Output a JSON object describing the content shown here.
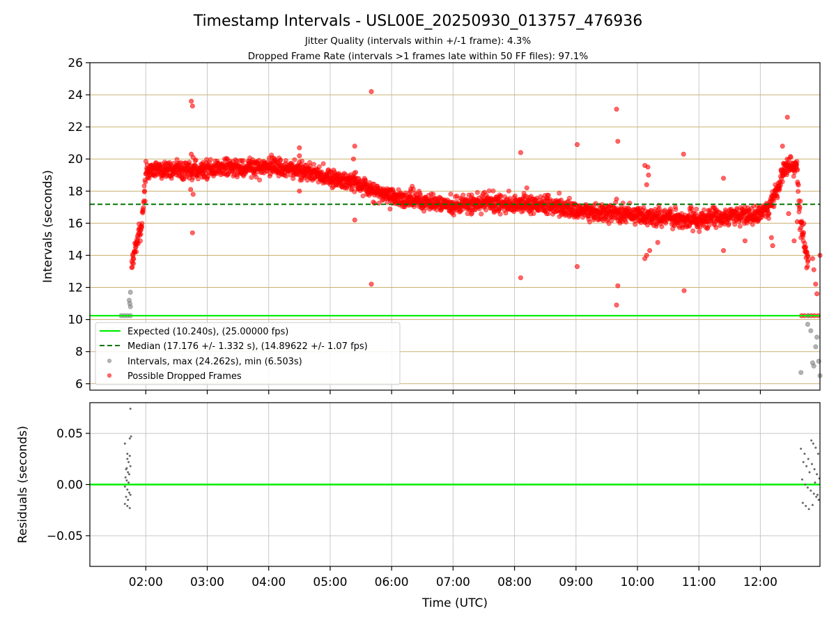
{
  "figure": {
    "title": "Timestamp Intervals - USL00E_20250930_013757_476936",
    "subtitle_1": "Jitter Quality (intervals within +/-1 frame): 4.3%",
    "subtitle_2": "Dropped Frame Rate (intervals >1 frames late within 50 FF files): 97.1%"
  },
  "colors": {
    "expected": "#00ee00",
    "median": "#007700",
    "interval_points": "#7f7f7f",
    "dropped_points": "#ff0000",
    "hgrid_top": "#c8b070",
    "grid": "#c8c8c8",
    "residual_points": "#666666"
  },
  "chart_data": [
    {
      "type": "scatter",
      "panel": "top",
      "ylabel": "Intervals (seconds)",
      "ylim": [
        5.6,
        26
      ],
      "yticks": [
        6,
        8,
        10,
        12,
        14,
        16,
        18,
        20,
        22,
        24,
        26
      ],
      "ytick_labels": [
        "6",
        "8",
        "10",
        "12",
        "14",
        "16",
        "18",
        "20",
        "22",
        "24",
        "26"
      ],
      "xlim_hours": [
        1.09,
        12.97
      ],
      "xticks_hours": [
        2,
        3,
        4,
        5,
        6,
        7,
        8,
        9,
        10,
        11,
        12
      ],
      "grid": "on",
      "legend_placement": "lower-left",
      "legend": [
        {
          "label": "Expected (10.240s), (25.00000 fps)",
          "kind": "solid-line",
          "color": "#00ee00"
        },
        {
          "label": "Median (17.176 +/- 1.332 s), (14.89622 +/- 1.07 fps)",
          "kind": "dashed-line",
          "color": "#007700"
        },
        {
          "label": "Intervals, max (24.262s), min (6.503s)",
          "kind": "marker",
          "color": "#7f7f7f"
        },
        {
          "label": "Possible Dropped Frames",
          "kind": "marker",
          "color": "#ff0000"
        }
      ],
      "expected_value": 10.24,
      "median_value": 17.176,
      "series": [
        {
          "name": "Possible Dropped Frames",
          "color": "#ff0000",
          "trend": [
            [
              1.77,
              13.2
            ],
            [
              1.82,
              14.3
            ],
            [
              1.88,
              15.1
            ],
            [
              1.93,
              16.0
            ],
            [
              1.97,
              17.3
            ],
            [
              2.0,
              19.0
            ],
            [
              2.02,
              19.3
            ],
            [
              2.5,
              19.3
            ],
            [
              3.0,
              19.35
            ],
            [
              3.5,
              19.45
            ],
            [
              4.0,
              19.5
            ],
            [
              4.5,
              19.3
            ],
            [
              4.9,
              18.9
            ],
            [
              5.2,
              18.7
            ],
            [
              5.4,
              18.6
            ],
            [
              5.6,
              18.1
            ],
            [
              5.9,
              17.8
            ],
            [
              6.2,
              17.6
            ],
            [
              6.6,
              17.3
            ],
            [
              7.0,
              17.1
            ],
            [
              7.5,
              17.25
            ],
            [
              8.0,
              17.2
            ],
            [
              8.5,
              17.1
            ],
            [
              9.0,
              16.9
            ],
            [
              9.5,
              16.6
            ],
            [
              10.0,
              16.45
            ],
            [
              10.5,
              16.35
            ],
            [
              11.0,
              16.3
            ],
            [
              11.5,
              16.4
            ],
            [
              12.0,
              16.6
            ],
            [
              12.15,
              17.0
            ],
            [
              12.25,
              17.8
            ],
            [
              12.32,
              18.5
            ],
            [
              12.38,
              19.3
            ],
            [
              12.5,
              19.6
            ],
            [
              12.6,
              19.4
            ],
            [
              12.63,
              17.0
            ],
            [
              12.68,
              15.5
            ],
            [
              12.73,
              14.2
            ],
            [
              12.78,
              13.5
            ]
          ],
          "values": [
            [
              2.74,
              23.6
            ],
            [
              2.76,
              23.3
            ],
            [
              2.74,
              20.3
            ],
            [
              2.77,
              20.1
            ],
            [
              2.73,
              18.1
            ],
            [
              2.77,
              17.8
            ],
            [
              2.76,
              15.4
            ],
            [
              4.5,
              20.7
            ],
            [
              4.5,
              20.2
            ],
            [
              4.5,
              19.8
            ],
            [
              4.5,
              18.0
            ],
            [
              5.4,
              20.8
            ],
            [
              5.38,
              20.0
            ],
            [
              5.4,
              16.2
            ],
            [
              5.67,
              24.2
            ],
            [
              5.67,
              12.2
            ],
            [
              8.1,
              20.4
            ],
            [
              8.1,
              12.6
            ],
            [
              8.2,
              18.2
            ],
            [
              9.02,
              20.9
            ],
            [
              9.02,
              13.3
            ],
            [
              9.66,
              23.1
            ],
            [
              9.68,
              21.1
            ],
            [
              9.68,
              12.1
            ],
            [
              9.66,
              10.9
            ],
            [
              9.66,
              17.5
            ],
            [
              10.12,
              19.6
            ],
            [
              10.17,
              19.5
            ],
            [
              10.18,
              19.0
            ],
            [
              10.15,
              18.4
            ],
            [
              10.12,
              13.8
            ],
            [
              10.15,
              14.0
            ],
            [
              10.2,
              14.3
            ],
            [
              10.33,
              14.8
            ],
            [
              10.75,
              20.3
            ],
            [
              10.76,
              11.8
            ],
            [
              11.4,
              18.8
            ],
            [
              11.4,
              14.3
            ],
            [
              11.75,
              14.9
            ],
            [
              12.18,
              15.1
            ],
            [
              12.2,
              14.6
            ],
            [
              12.36,
              20.8
            ],
            [
              12.44,
              22.6
            ],
            [
              12.46,
              16.6
            ],
            [
              12.55,
              14.9
            ],
            [
              12.6,
              16.1
            ],
            [
              12.85,
              13.8
            ],
            [
              12.87,
              13.1
            ],
            [
              12.9,
              12.2
            ],
            [
              12.92,
              11.6
            ],
            [
              12.97,
              14.0
            ],
            [
              12.67,
              10.24
            ],
            [
              12.72,
              10.24
            ],
            [
              12.78,
              10.24
            ],
            [
              12.83,
              10.24
            ],
            [
              12.88,
              10.24
            ],
            [
              12.94,
              10.24
            ]
          ]
        },
        {
          "name": "Intervals, max (24.262s), min (6.503s)",
          "color": "#7f7f7f",
          "values": [
            [
              1.6,
              10.24
            ],
            [
              1.65,
              10.24
            ],
            [
              1.7,
              10.24
            ],
            [
              1.75,
              10.24
            ],
            [
              1.73,
              11.2
            ],
            [
              1.75,
              11.7
            ],
            [
              1.74,
              11.0
            ],
            [
              1.75,
              10.8
            ],
            [
              12.77,
              9.7
            ],
            [
              12.78,
              10.24
            ],
            [
              12.82,
              9.3
            ],
            [
              12.85,
              7.3
            ],
            [
              12.87,
              7.1
            ],
            [
              12.9,
              8.3
            ],
            [
              12.92,
              8.9
            ],
            [
              12.95,
              7.4
            ],
            [
              12.97,
              6.5
            ],
            [
              12.66,
              6.7
            ]
          ]
        }
      ]
    },
    {
      "type": "scatter",
      "panel": "bottom",
      "xlabel": "Time (UTC)",
      "ylabel": "Residuals (seconds)",
      "ylim": [
        -0.08,
        0.08
      ],
      "yticks": [
        -0.05,
        0.0,
        0.05
      ],
      "ytick_labels": [
        "−0.05",
        "0.00",
        "0.05"
      ],
      "xlim_hours": [
        1.09,
        12.97
      ],
      "xticks_hours": [
        2,
        3,
        4,
        5,
        6,
        7,
        8,
        9,
        10,
        11,
        12
      ],
      "xtick_labels": [
        "02:00",
        "03:00",
        "04:00",
        "05:00",
        "06:00",
        "07:00",
        "08:00",
        "09:00",
        "10:00",
        "11:00",
        "12:00"
      ],
      "grid": "on",
      "zero_line_color": "#00ee00",
      "series": [
        {
          "name": "",
          "color": "#666666",
          "values": [
            [
              1.75,
              0.074
            ],
            [
              1.76,
              0.047
            ],
            [
              1.74,
              0.045
            ],
            [
              1.66,
              0.04
            ],
            [
              1.7,
              0.03
            ],
            [
              1.74,
              0.028
            ],
            [
              1.7,
              0.025
            ],
            [
              1.75,
              0.018
            ],
            [
              1.68,
              0.015
            ],
            [
              1.71,
              0.012
            ],
            [
              1.73,
              0.01
            ],
            [
              1.67,
              0.007
            ],
            [
              1.69,
              0.004
            ],
            [
              1.72,
              0.002
            ],
            [
              1.66,
              -0.002
            ],
            [
              1.7,
              -0.005
            ],
            [
              1.73,
              -0.008
            ],
            [
              1.75,
              -0.01
            ],
            [
              1.68,
              -0.012
            ],
            [
              1.71,
              -0.015
            ],
            [
              1.66,
              -0.019
            ],
            [
              1.7,
              -0.021
            ],
            [
              1.74,
              -0.023
            ],
            [
              1.72,
              0.022
            ],
            [
              1.69,
              0.016
            ],
            [
              12.66,
              0.035
            ],
            [
              12.72,
              0.03
            ],
            [
              12.78,
              0.025
            ],
            [
              12.83,
              0.043
            ],
            [
              12.86,
              0.04
            ],
            [
              12.9,
              0.036
            ],
            [
              12.94,
              0.03
            ],
            [
              12.7,
              0.022
            ],
            [
              12.75,
              0.018
            ],
            [
              12.8,
              0.012
            ],
            [
              12.84,
              0.02
            ],
            [
              12.88,
              0.015
            ],
            [
              12.92,
              0.01
            ],
            [
              12.96,
              0.006
            ],
            [
              12.68,
              0.005
            ],
            [
              12.73,
              0.0
            ],
            [
              12.77,
              -0.003
            ],
            [
              12.82,
              -0.006
            ],
            [
              12.87,
              -0.009
            ],
            [
              12.91,
              -0.012
            ],
            [
              12.95,
              -0.015
            ],
            [
              12.69,
              -0.018
            ],
            [
              12.74,
              -0.021
            ],
            [
              12.79,
              -0.024
            ],
            [
              12.85,
              -0.02
            ],
            [
              12.93,
              -0.01
            ],
            [
              12.89,
              0.002
            ]
          ]
        }
      ]
    }
  ]
}
